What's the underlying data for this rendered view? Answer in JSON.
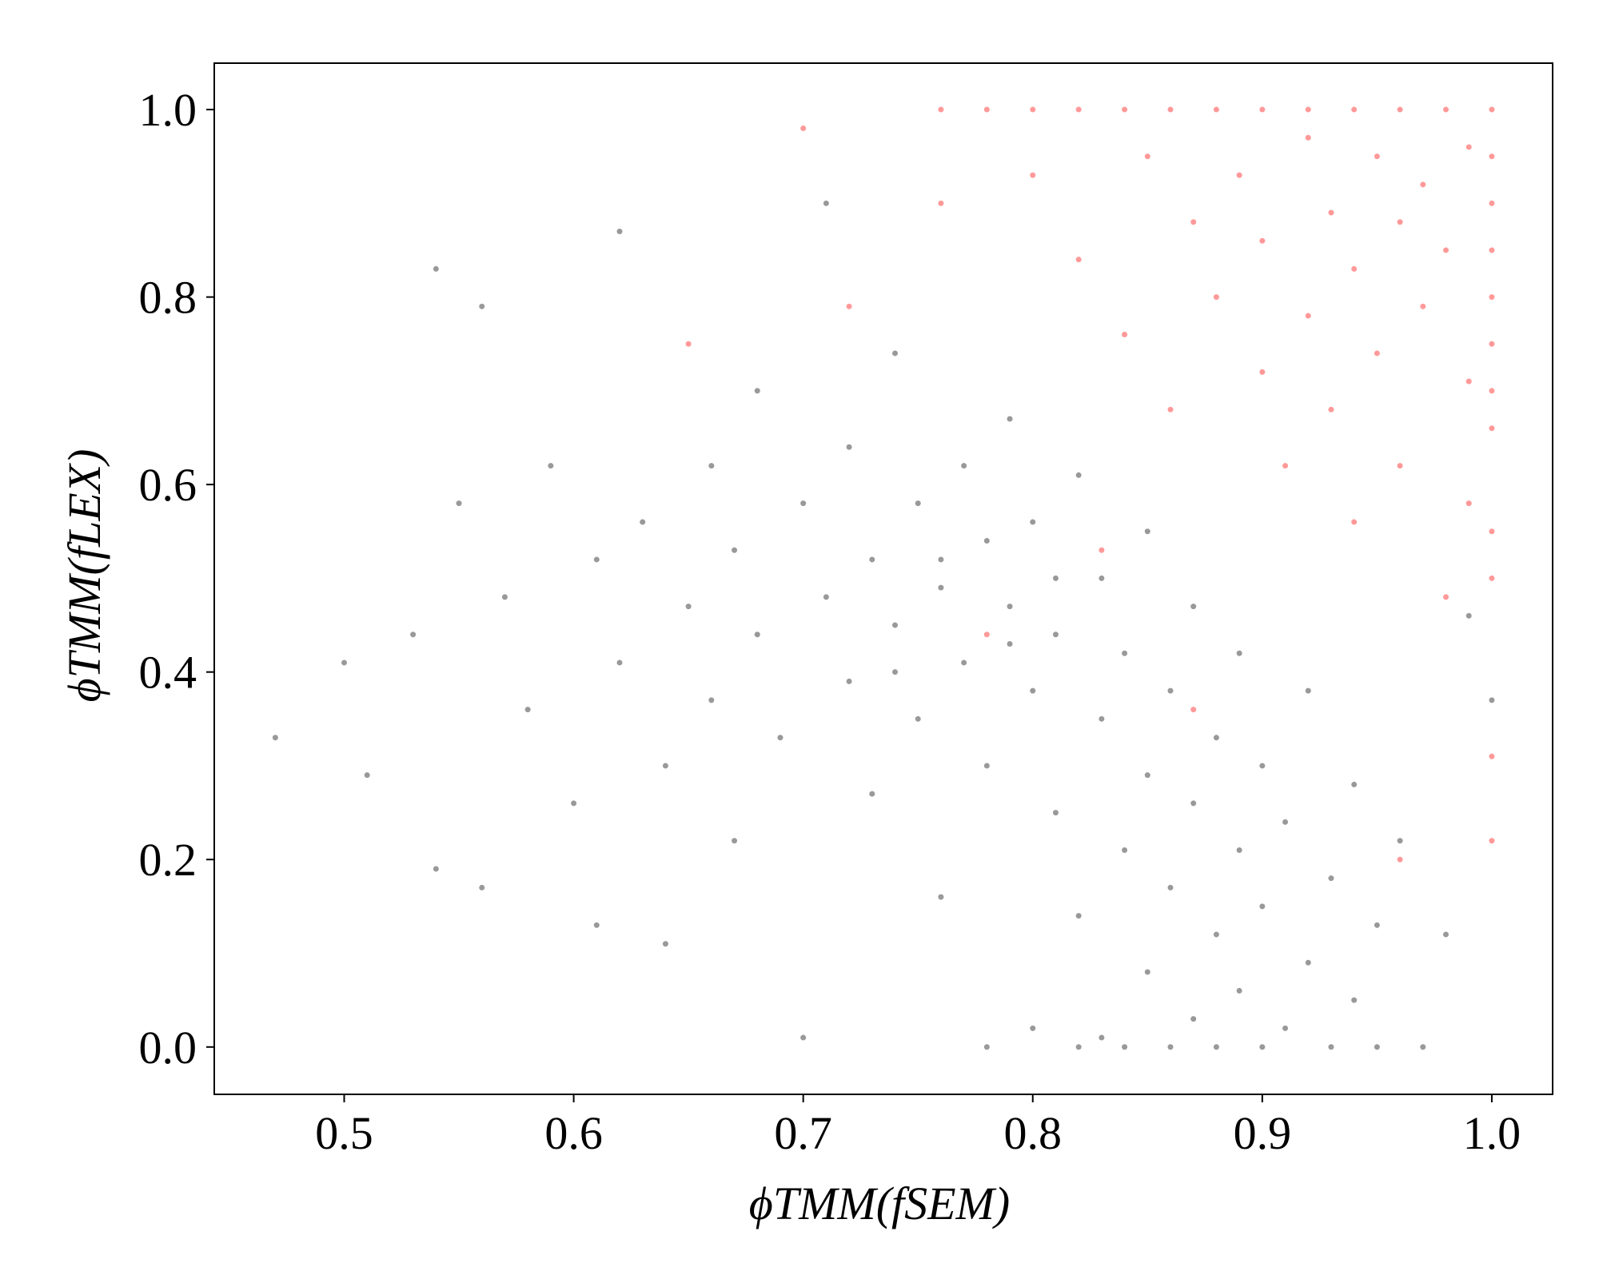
{
  "chart_data": {
    "type": "scatter",
    "x_label": "ϕTMM(fSEM)",
    "y_label": "ϕTMM(fLEX)",
    "xlim": [
      0.4434,
      1.0265
    ],
    "ylim": [
      -0.0505,
      1.0495
    ],
    "xticks": [
      0.5,
      0.6,
      0.7,
      0.8,
      0.9,
      {
        "value": 1,
        "label": "1.0"
      }
    ],
    "yticks": [
      {
        "value": 0,
        "label": "0.0"
      },
      0.2,
      0.4,
      0.6,
      0.8,
      {
        "value": 1,
        "label": "1.0"
      }
    ],
    "series": [
      {
        "color": "#000000",
        "x": [
          0.47,
          0.5,
          0.51,
          0.53,
          0.54,
          0.54,
          0.55,
          0.56,
          0.56,
          0.57,
          0.58,
          0.59,
          0.6,
          0.61,
          0.61,
          0.62,
          0.62,
          0.63,
          0.64,
          0.64,
          0.65,
          0.66,
          0.66,
          0.67,
          0.67,
          0.68,
          0.68,
          0.69,
          0.7,
          0.7,
          0.71,
          0.71,
          0.72,
          0.72,
          0.73,
          0.73,
          0.74,
          0.74,
          0.75,
          0.75,
          0.76,
          0.76,
          0.77,
          0.77,
          0.78,
          0.78,
          0.78,
          0.79,
          0.79,
          0.8,
          0.8,
          0.8,
          0.81,
          0.81,
          0.82,
          0.82,
          0.82,
          0.83,
          0.83,
          0.83,
          0.84,
          0.84,
          0.84,
          0.85,
          0.85,
          0.85,
          0.86,
          0.86,
          0.86,
          0.87,
          0.87,
          0.87,
          0.88,
          0.88,
          0.88,
          0.89,
          0.89,
          0.89,
          0.9,
          0.9,
          0.9,
          0.91,
          0.91,
          0.92,
          0.92,
          0.93,
          0.93,
          0.94,
          0.94,
          0.95,
          0.95,
          0.96,
          0.97,
          0.98,
          0.99,
          1.0,
          0.76,
          0.79,
          0.81,
          0.74
        ],
        "y": [
          0.33,
          0.41,
          0.29,
          0.44,
          0.83,
          0.19,
          0.58,
          0.79,
          0.17,
          0.48,
          0.36,
          0.62,
          0.26,
          0.52,
          0.13,
          0.87,
          0.41,
          0.56,
          0.3,
          0.11,
          0.47,
          0.62,
          0.37,
          0.22,
          0.53,
          0.44,
          0.7,
          0.33,
          0.58,
          0.01,
          0.48,
          0.9,
          0.39,
          0.64,
          0.27,
          0.52,
          0.45,
          0.74,
          0.58,
          0.35,
          0.49,
          0.16,
          0.62,
          0.41,
          0.54,
          0.3,
          0.0,
          0.47,
          0.67,
          0.38,
          0.02,
          0.56,
          0.25,
          0.44,
          0.0,
          0.61,
          0.14,
          0.35,
          0.01,
          0.5,
          0.21,
          0.0,
          0.42,
          0.08,
          0.29,
          0.55,
          0.0,
          0.17,
          0.38,
          0.03,
          0.26,
          0.47,
          0.0,
          0.12,
          0.33,
          0.06,
          0.21,
          0.42,
          0.0,
          0.15,
          0.3,
          0.02,
          0.24,
          0.09,
          0.38,
          0.0,
          0.18,
          0.05,
          0.28,
          0.0,
          0.13,
          0.22,
          0.0,
          0.12,
          0.46,
          0.37,
          0.52,
          0.43,
          0.5,
          0.4
        ]
      },
      {
        "color": "#ff0000",
        "x": [
          0.76,
          0.78,
          0.8,
          0.82,
          0.84,
          0.86,
          0.88,
          0.9,
          0.92,
          0.94,
          0.96,
          0.98,
          1.0,
          1.0,
          1.0,
          1.0,
          1.0,
          1.0,
          1.0,
          1.0,
          1.0,
          1.0,
          1.0,
          1.0,
          0.7,
          0.72,
          0.76,
          0.8,
          0.82,
          0.84,
          0.85,
          0.86,
          0.87,
          0.88,
          0.89,
          0.9,
          0.9,
          0.91,
          0.92,
          0.92,
          0.93,
          0.93,
          0.94,
          0.94,
          0.95,
          0.95,
          0.96,
          0.96,
          0.97,
          0.97,
          0.98,
          0.98,
          0.99,
          0.99,
          0.99,
          0.65,
          0.78,
          0.83,
          0.87,
          0.96
        ],
        "y": [
          1.0,
          1.0,
          1.0,
          1.0,
          1.0,
          1.0,
          1.0,
          1.0,
          1.0,
          1.0,
          1.0,
          1.0,
          1.0,
          0.95,
          0.9,
          0.85,
          0.8,
          0.75,
          0.7,
          0.66,
          0.55,
          0.5,
          0.31,
          0.22,
          0.98,
          0.79,
          0.9,
          0.93,
          0.84,
          0.76,
          0.95,
          0.68,
          0.88,
          0.8,
          0.93,
          0.72,
          0.86,
          0.62,
          0.97,
          0.78,
          0.89,
          0.68,
          0.83,
          0.56,
          0.95,
          0.74,
          0.88,
          0.62,
          0.92,
          0.79,
          0.85,
          0.48,
          0.96,
          0.71,
          0.58,
          0.75,
          0.44,
          0.53,
          0.36,
          0.2
        ]
      }
    ]
  }
}
